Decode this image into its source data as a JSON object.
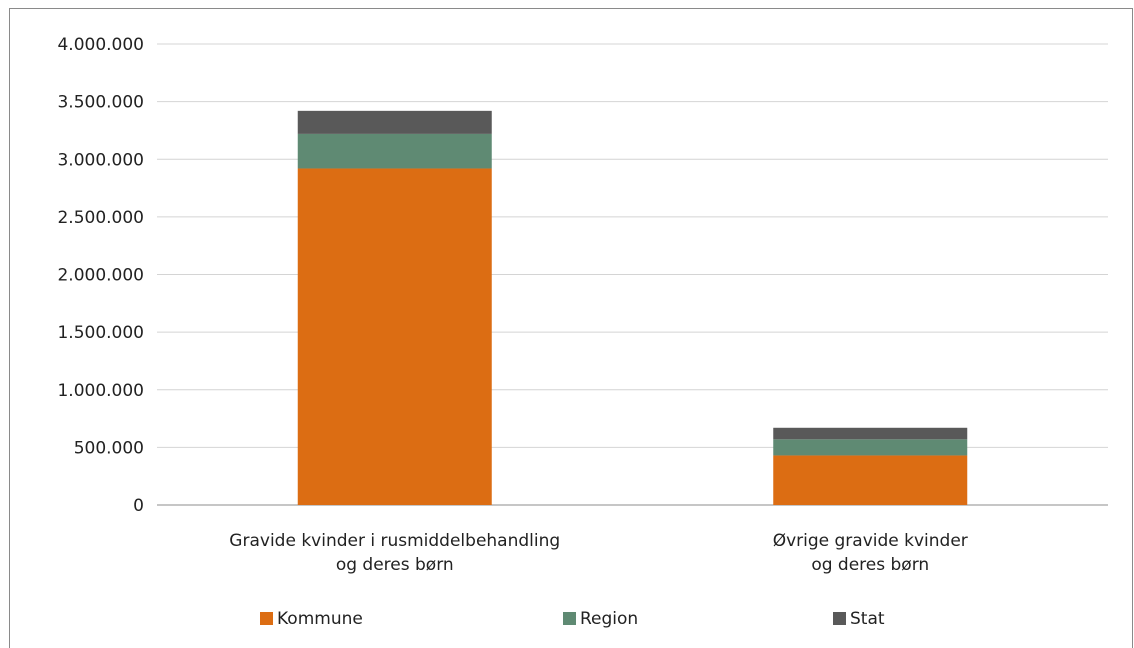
{
  "chart_data": {
    "type": "bar",
    "stacked": true,
    "categories": [
      [
        "Gravide kvinder i rusmiddelbehandling",
        "og deres børn"
      ],
      [
        "Øvrige gravide kvinder",
        "og deres børn"
      ]
    ],
    "series": [
      {
        "name": "Kommune",
        "color": "#dc6d13",
        "values": [
          2920000,
          430000
        ]
      },
      {
        "name": "Region",
        "color": "#5f8a73",
        "values": [
          300000,
          140000
        ]
      },
      {
        "name": "Stat",
        "color": "#595959",
        "values": [
          200000,
          100000
        ]
      }
    ],
    "ylim": [
      0,
      4000000
    ],
    "yticks": [
      0,
      500000,
      1000000,
      1500000,
      2000000,
      2500000,
      3000000,
      3500000,
      4000000
    ],
    "ytick_labels": [
      "0",
      "500.000",
      "1.000.000",
      "1.500.000",
      "2.000.000",
      "2.500.000",
      "3.000.000",
      "3.500.000",
      "4.000.000"
    ],
    "grid": true,
    "legend_position": "bottom",
    "xlabel": "",
    "ylabel": "",
    "title": ""
  }
}
